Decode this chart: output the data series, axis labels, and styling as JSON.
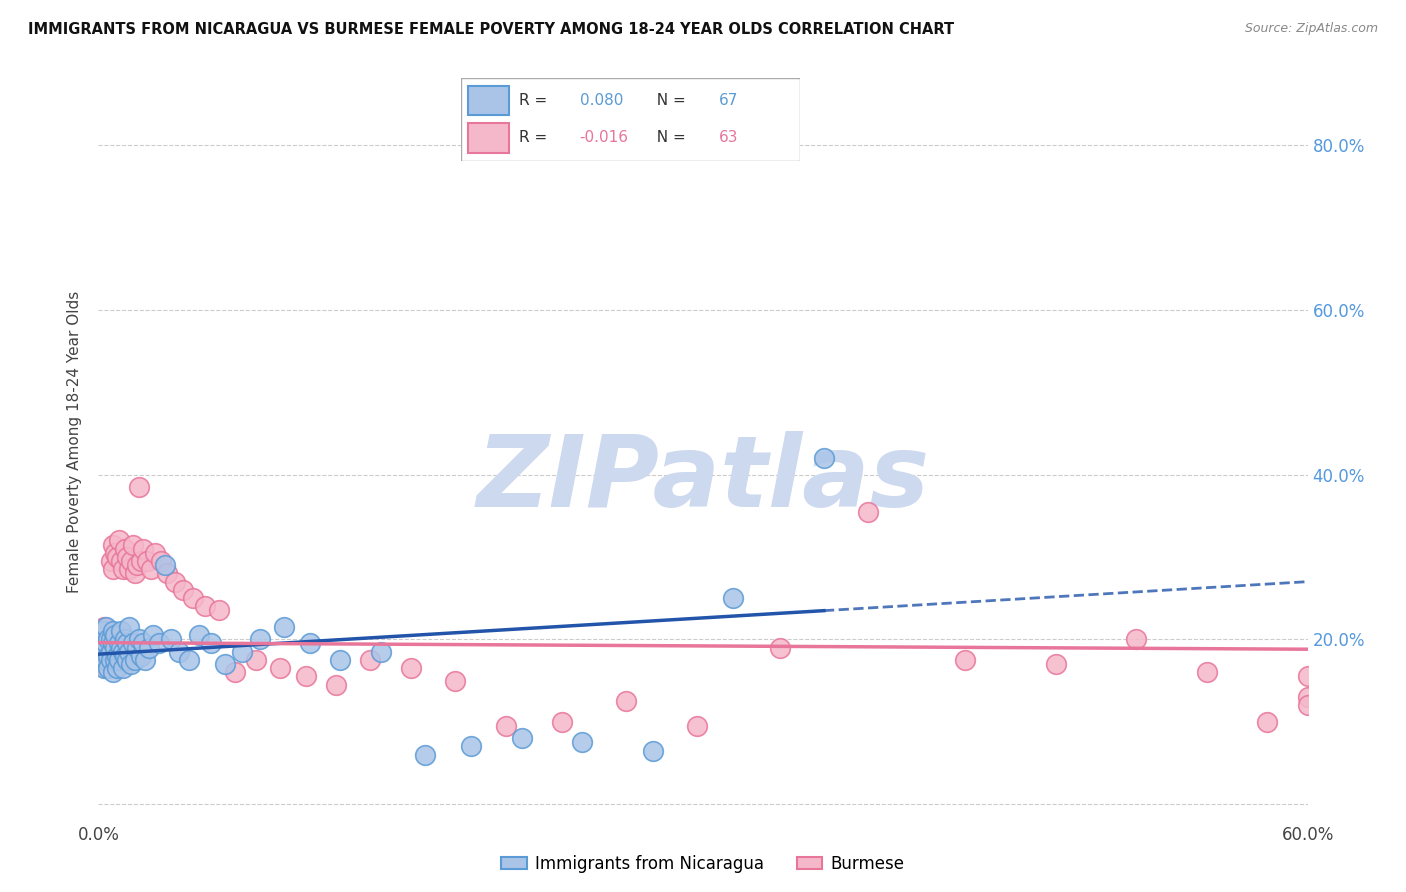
{
  "title": "IMMIGRANTS FROM NICARAGUA VS BURMESE FEMALE POVERTY AMONG 18-24 YEAR OLDS CORRELATION CHART",
  "source": "Source: ZipAtlas.com",
  "ylabel": "Female Poverty Among 18-24 Year Olds",
  "xlim": [
    0.0,
    0.6
  ],
  "ylim": [
    -0.02,
    0.9
  ],
  "xticks": [
    0.0,
    0.6
  ],
  "xtick_labels": [
    "0.0%",
    "60.0%"
  ],
  "yticks": [
    0.0,
    0.2,
    0.4,
    0.6,
    0.8
  ],
  "ytick_labels_right": [
    "",
    "20.0%",
    "40.0%",
    "60.0%",
    "80.0%"
  ],
  "nicaragua_color": "#aac4e8",
  "nicaragua_edge_color": "#5b9bd5",
  "burmese_color": "#f5b8ca",
  "burmese_edge_color": "#e8759a",
  "nicaragua_R": 0.08,
  "nicaragua_N": 67,
  "burmese_R": -0.016,
  "burmese_N": 63,
  "trend_blue_color": "#2255aa",
  "trend_pink_color": "#e8759a",
  "watermark": "ZIPatlas",
  "watermark_color": "#ccd9ee",
  "grid_color": "#cccccc",
  "nicaragua_scatter_x": [
    0.001,
    0.001,
    0.002,
    0.002,
    0.003,
    0.003,
    0.003,
    0.004,
    0.004,
    0.004,
    0.005,
    0.005,
    0.005,
    0.006,
    0.006,
    0.006,
    0.007,
    0.007,
    0.007,
    0.008,
    0.008,
    0.008,
    0.009,
    0.009,
    0.01,
    0.01,
    0.011,
    0.011,
    0.012,
    0.012,
    0.013,
    0.013,
    0.014,
    0.014,
    0.015,
    0.015,
    0.016,
    0.017,
    0.018,
    0.019,
    0.02,
    0.021,
    0.022,
    0.023,
    0.025,
    0.027,
    0.03,
    0.033,
    0.036,
    0.04,
    0.045,
    0.05,
    0.056,
    0.063,
    0.071,
    0.08,
    0.092,
    0.105,
    0.12,
    0.14,
    0.162,
    0.185,
    0.21,
    0.24,
    0.275,
    0.315,
    0.36
  ],
  "nicaragua_scatter_y": [
    0.195,
    0.175,
    0.205,
    0.185,
    0.165,
    0.19,
    0.21,
    0.175,
    0.195,
    0.215,
    0.18,
    0.2,
    0.165,
    0.185,
    0.2,
    0.175,
    0.16,
    0.195,
    0.21,
    0.175,
    0.19,
    0.205,
    0.18,
    0.165,
    0.195,
    0.175,
    0.19,
    0.21,
    0.185,
    0.165,
    0.2,
    0.18,
    0.195,
    0.175,
    0.215,
    0.185,
    0.17,
    0.195,
    0.175,
    0.19,
    0.2,
    0.18,
    0.195,
    0.175,
    0.19,
    0.205,
    0.195,
    0.29,
    0.2,
    0.185,
    0.175,
    0.205,
    0.195,
    0.17,
    0.185,
    0.2,
    0.215,
    0.195,
    0.175,
    0.185,
    0.06,
    0.07,
    0.08,
    0.075,
    0.065,
    0.25,
    0.42
  ],
  "burmese_scatter_x": [
    0.001,
    0.001,
    0.002,
    0.002,
    0.003,
    0.003,
    0.004,
    0.004,
    0.005,
    0.005,
    0.006,
    0.006,
    0.007,
    0.007,
    0.008,
    0.008,
    0.009,
    0.01,
    0.01,
    0.011,
    0.012,
    0.013,
    0.014,
    0.015,
    0.016,
    0.017,
    0.018,
    0.019,
    0.02,
    0.021,
    0.022,
    0.024,
    0.026,
    0.028,
    0.031,
    0.034,
    0.038,
    0.042,
    0.047,
    0.053,
    0.06,
    0.068,
    0.078,
    0.09,
    0.103,
    0.118,
    0.135,
    0.155,
    0.177,
    0.202,
    0.23,
    0.262,
    0.297,
    0.338,
    0.382,
    0.43,
    0.475,
    0.515,
    0.55,
    0.58,
    0.6,
    0.6,
    0.6
  ],
  "burmese_scatter_y": [
    0.19,
    0.21,
    0.175,
    0.2,
    0.215,
    0.18,
    0.195,
    0.165,
    0.2,
    0.185,
    0.295,
    0.175,
    0.315,
    0.285,
    0.305,
    0.175,
    0.3,
    0.32,
    0.175,
    0.295,
    0.285,
    0.31,
    0.3,
    0.285,
    0.295,
    0.315,
    0.28,
    0.29,
    0.385,
    0.295,
    0.31,
    0.295,
    0.285,
    0.305,
    0.295,
    0.28,
    0.27,
    0.26,
    0.25,
    0.24,
    0.235,
    0.16,
    0.175,
    0.165,
    0.155,
    0.145,
    0.175,
    0.165,
    0.15,
    0.095,
    0.1,
    0.125,
    0.095,
    0.19,
    0.355,
    0.175,
    0.17,
    0.2,
    0.16,
    0.1,
    0.155,
    0.13,
    0.12
  ],
  "trend_nic_x0": 0.0,
  "trend_nic_y0": 0.182,
  "trend_nic_x1": 0.6,
  "trend_nic_y1": 0.27,
  "trend_bur_x0": 0.0,
  "trend_bur_y0": 0.196,
  "trend_bur_x1": 0.6,
  "trend_bur_y1": 0.188
}
